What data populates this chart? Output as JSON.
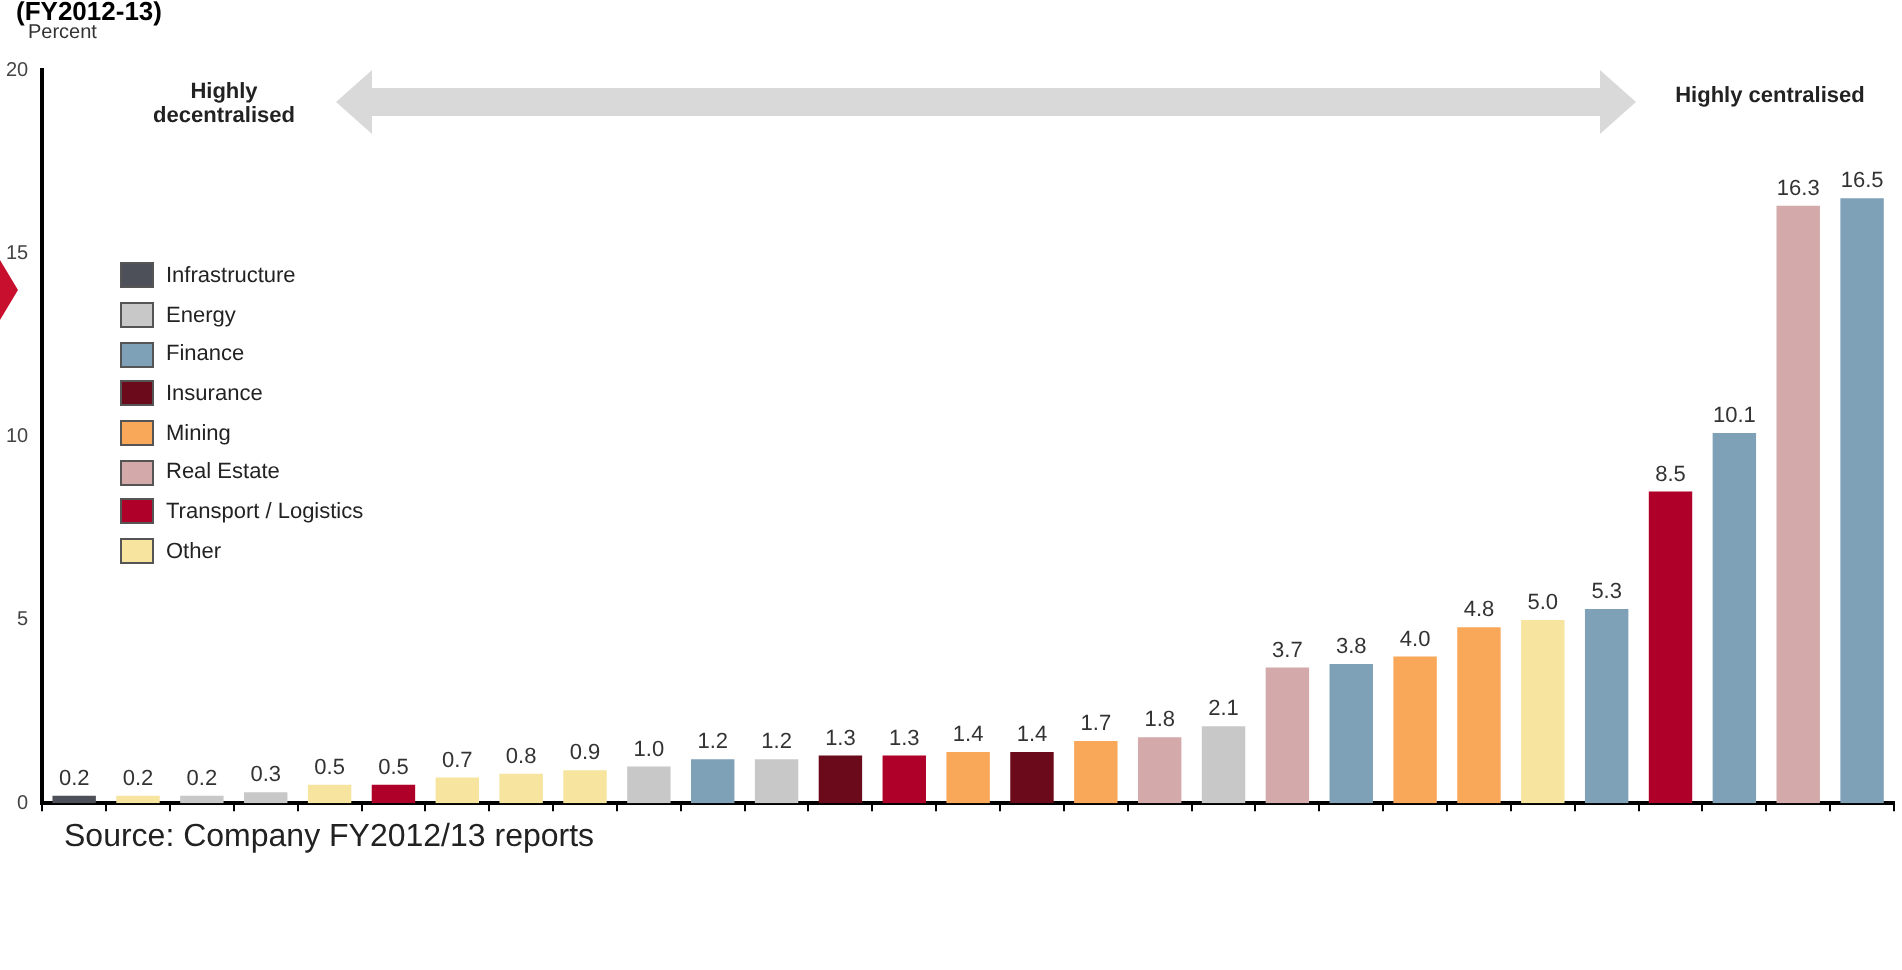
{
  "chart_data": {
    "type": "bar",
    "title": "(FY2012-13)",
    "ylabel": "Percent",
    "stacked": true,
    "legend": "top left",
    "grid": false,
    "categories": [
      null,
      null,
      null,
      null,
      null,
      null,
      null,
      null,
      null,
      null,
      null,
      null,
      null,
      null,
      null,
      null,
      null,
      null,
      null,
      null,
      null,
      null,
      null,
      null,
      null,
      null,
      null,
      null,
      null
    ],
    "ylim": [
      0,
      20
    ],
    "yticks": [
      0,
      5,
      10,
      15,
      20
    ],
    "annotations": [
      "Highly decentralised",
      "Highly centralised",
      "Source: Company FY2012/13 reports"
    ],
    "series": [
      {
        "name": "Infrastructure",
        "color": "#4d5058",
        "values": [
          0.2,
          null,
          null,
          null,
          null,
          null,
          null,
          null,
          null,
          null,
          null,
          null,
          null,
          null,
          null,
          null,
          null,
          null,
          null,
          null,
          null,
          null,
          null,
          null,
          null,
          null,
          null,
          null,
          null
        ],
        "value_labels": [
          "0.2",
          null,
          null,
          null,
          null,
          null,
          null,
          null,
          null,
          null,
          null,
          null,
          null,
          null,
          null,
          null,
          null,
          null,
          null,
          null,
          null,
          null,
          null,
          null,
          null,
          null,
          null,
          null,
          null
        ]
      },
      {
        "name": "Energy",
        "color": "#c8c8c8",
        "values": [
          null,
          null,
          0.2,
          0.3,
          null,
          null,
          null,
          null,
          null,
          1.0,
          null,
          1.2,
          null,
          null,
          null,
          null,
          null,
          null,
          2.1,
          null,
          null,
          null,
          null,
          null,
          null,
          null,
          null,
          null,
          null
        ],
        "value_labels": [
          null,
          null,
          "0.2",
          "0.3",
          null,
          null,
          null,
          null,
          null,
          "1.0",
          null,
          "1.2",
          null,
          null,
          null,
          null,
          null,
          null,
          "2.1",
          null,
          null,
          null,
          null,
          null,
          null,
          null,
          null,
          null,
          null
        ]
      },
      {
        "name": "Finance",
        "color": "#7fa1b7",
        "values": [
          null,
          null,
          null,
          null,
          null,
          null,
          null,
          null,
          null,
          null,
          1.2,
          null,
          null,
          null,
          null,
          null,
          null,
          null,
          null,
          null,
          3.8,
          null,
          null,
          null,
          5.3,
          null,
          10.1,
          null,
          16.5
        ],
        "value_labels": [
          null,
          null,
          null,
          null,
          null,
          null,
          null,
          null,
          null,
          null,
          "1.2",
          null,
          null,
          null,
          null,
          null,
          null,
          null,
          null,
          null,
          "3.8",
          null,
          null,
          null,
          "5.3",
          null,
          "10.1",
          null,
          "16.5"
        ]
      },
      {
        "name": "Insurance",
        "color": "#6b0a1a",
        "values": [
          null,
          null,
          null,
          null,
          null,
          null,
          null,
          null,
          null,
          null,
          null,
          null,
          1.3,
          null,
          null,
          1.4,
          null,
          null,
          null,
          null,
          null,
          null,
          null,
          null,
          null,
          null,
          null,
          null,
          null
        ],
        "value_labels": [
          null,
          null,
          null,
          null,
          null,
          null,
          null,
          null,
          null,
          null,
          null,
          null,
          "1.3",
          null,
          null,
          "1.4",
          null,
          null,
          null,
          null,
          null,
          null,
          null,
          null,
          null,
          null,
          null,
          null,
          null
        ]
      },
      {
        "name": "Mining",
        "color": "#f9a85a",
        "values": [
          null,
          null,
          null,
          null,
          null,
          null,
          null,
          null,
          null,
          null,
          null,
          null,
          null,
          null,
          1.4,
          null,
          1.7,
          null,
          null,
          null,
          null,
          4.0,
          4.8,
          null,
          null,
          null,
          null,
          null,
          null
        ],
        "value_labels": [
          null,
          null,
          null,
          null,
          null,
          null,
          null,
          null,
          null,
          null,
          null,
          null,
          null,
          null,
          "1.4",
          null,
          "1.7",
          null,
          null,
          null,
          null,
          "4.0",
          "4.8",
          null,
          null,
          null,
          null,
          null,
          null
        ]
      },
      {
        "name": "Real Estate",
        "color": "#d3a9aa",
        "values": [
          null,
          null,
          null,
          null,
          null,
          null,
          null,
          null,
          null,
          null,
          null,
          null,
          null,
          null,
          null,
          null,
          null,
          1.8,
          null,
          3.7,
          null,
          null,
          null,
          null,
          null,
          null,
          null,
          16.3,
          null
        ],
        "value_labels": [
          null,
          null,
          null,
          null,
          null,
          null,
          null,
          null,
          null,
          null,
          null,
          null,
          null,
          null,
          null,
          null,
          null,
          "1.8",
          null,
          "3.7",
          null,
          null,
          null,
          null,
          null,
          null,
          null,
          "16.3",
          null
        ]
      },
      {
        "name": "Transport / Logistics",
        "color": "#ae0028",
        "values": [
          null,
          null,
          null,
          null,
          null,
          0.5,
          null,
          null,
          null,
          null,
          null,
          null,
          null,
          1.3,
          null,
          null,
          null,
          null,
          null,
          null,
          null,
          null,
          null,
          null,
          null,
          8.5,
          null,
          null,
          null
        ],
        "value_labels": [
          null,
          null,
          null,
          null,
          null,
          "0.5",
          null,
          null,
          null,
          null,
          null,
          null,
          null,
          "1.3",
          null,
          null,
          null,
          null,
          null,
          null,
          null,
          null,
          null,
          null,
          null,
          "8.5",
          null,
          null,
          null
        ]
      },
      {
        "name": "Other",
        "color": "#f7e49e",
        "values": [
          null,
          0.2,
          null,
          null,
          0.5,
          null,
          0.7,
          0.8,
          0.9,
          null,
          null,
          null,
          null,
          null,
          null,
          null,
          null,
          null,
          null,
          null,
          null,
          null,
          null,
          5.0,
          null,
          null,
          null,
          null,
          null
        ],
        "value_labels": [
          null,
          "0.2",
          null,
          null,
          "0.5",
          null,
          "0.7",
          "0.8",
          "0.9",
          null,
          null,
          null,
          null,
          null,
          null,
          null,
          null,
          null,
          null,
          null,
          null,
          null,
          null,
          "5.0",
          null,
          null,
          null,
          null,
          null
        ]
      }
    ]
  }
}
